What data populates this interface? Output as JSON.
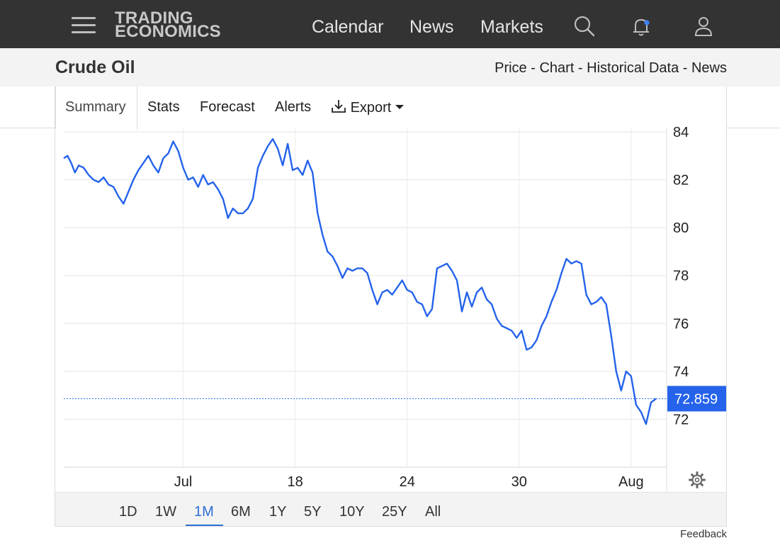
{
  "header": {
    "logo_line1": "TRADING",
    "logo_line2": "ECONOMICS",
    "nav": [
      "Calendar",
      "News",
      "Markets"
    ],
    "icons": [
      "menu-icon",
      "search-icon",
      "bell-icon",
      "user-icon"
    ],
    "notification_dot_color": "#3b82f6"
  },
  "subheader": {
    "title": "Crude Oil",
    "links": [
      "Price",
      "Chart",
      "Historical Data",
      "News"
    ],
    "separator": " - "
  },
  "tabs": {
    "summary": "Summary",
    "stats": "Stats",
    "forecast": "Forecast",
    "alerts": "Alerts",
    "export": "Export"
  },
  "ranges": {
    "items": [
      "1D",
      "1W",
      "1M",
      "6M",
      "1Y",
      "5Y",
      "10Y",
      "25Y",
      "All"
    ],
    "selected": "1M"
  },
  "feedback": "Feedback",
  "chart_data": {
    "type": "line",
    "series": [
      {
        "color": "#2563eb",
        "points": [
          [
            0,
            82.9
          ],
          [
            0.15,
            83.0
          ],
          [
            0.3,
            82.7
          ],
          [
            0.45,
            82.3
          ],
          [
            0.6,
            82.6
          ],
          [
            0.8,
            82.5
          ],
          [
            1.0,
            82.2
          ],
          [
            1.2,
            82.0
          ],
          [
            1.4,
            81.9
          ],
          [
            1.6,
            82.1
          ],
          [
            1.8,
            81.8
          ],
          [
            2.0,
            81.7
          ],
          [
            2.2,
            81.3
          ],
          [
            2.4,
            81.0
          ],
          [
            2.6,
            81.5
          ],
          [
            2.8,
            82.0
          ],
          [
            3.0,
            82.4
          ],
          [
            3.2,
            82.7
          ],
          [
            3.4,
            83.0
          ],
          [
            3.6,
            82.6
          ],
          [
            3.8,
            82.3
          ],
          [
            4.0,
            82.9
          ],
          [
            4.2,
            83.1
          ],
          [
            4.4,
            83.6
          ],
          [
            4.6,
            83.2
          ],
          [
            4.8,
            82.5
          ],
          [
            5.0,
            82.0
          ],
          [
            5.2,
            82.1
          ],
          [
            5.4,
            81.7
          ],
          [
            5.6,
            82.2
          ],
          [
            5.8,
            81.8
          ],
          [
            6.0,
            81.9
          ],
          [
            6.2,
            81.6
          ],
          [
            6.4,
            81.2
          ],
          [
            6.6,
            80.4
          ],
          [
            6.8,
            80.8
          ],
          [
            7.0,
            80.6
          ],
          [
            7.2,
            80.6
          ],
          [
            7.4,
            80.8
          ],
          [
            7.6,
            81.2
          ],
          [
            7.8,
            82.5
          ],
          [
            8.0,
            83.0
          ],
          [
            8.2,
            83.4
          ],
          [
            8.4,
            83.7
          ],
          [
            8.6,
            83.3
          ],
          [
            8.8,
            82.6
          ],
          [
            9.0,
            83.5
          ],
          [
            9.2,
            82.4
          ],
          [
            9.4,
            82.5
          ],
          [
            9.6,
            82.2
          ],
          [
            9.8,
            82.8
          ],
          [
            10.0,
            82.3
          ],
          [
            10.2,
            80.6
          ],
          [
            10.4,
            79.7
          ],
          [
            10.6,
            79.0
          ],
          [
            10.8,
            78.8
          ],
          [
            11.0,
            78.4
          ],
          [
            11.2,
            77.9
          ],
          [
            11.4,
            78.3
          ],
          [
            11.6,
            78.2
          ],
          [
            11.8,
            78.3
          ],
          [
            12.0,
            78.3
          ],
          [
            12.2,
            78.1
          ],
          [
            12.4,
            77.4
          ],
          [
            12.6,
            76.8
          ],
          [
            12.8,
            77.3
          ],
          [
            13.0,
            77.4
          ],
          [
            13.2,
            77.2
          ],
          [
            13.4,
            77.5
          ],
          [
            13.6,
            77.8
          ],
          [
            13.8,
            77.4
          ],
          [
            14.0,
            77.3
          ],
          [
            14.2,
            76.9
          ],
          [
            14.4,
            76.8
          ],
          [
            14.6,
            76.3
          ],
          [
            14.8,
            76.6
          ],
          [
            15.0,
            78.3
          ],
          [
            15.2,
            78.4
          ],
          [
            15.4,
            78.5
          ],
          [
            15.6,
            78.2
          ],
          [
            15.8,
            77.8
          ],
          [
            16.0,
            76.5
          ],
          [
            16.2,
            77.3
          ],
          [
            16.4,
            76.7
          ],
          [
            16.6,
            77.3
          ],
          [
            16.8,
            77.5
          ],
          [
            17.0,
            77.0
          ],
          [
            17.2,
            76.8
          ],
          [
            17.4,
            76.2
          ],
          [
            17.6,
            75.9
          ],
          [
            17.8,
            75.8
          ],
          [
            18.0,
            75.7
          ],
          [
            18.2,
            75.4
          ],
          [
            18.4,
            75.7
          ],
          [
            18.6,
            74.9
          ],
          [
            18.8,
            75.0
          ],
          [
            19.0,
            75.3
          ],
          [
            19.2,
            75.9
          ],
          [
            19.4,
            76.3
          ],
          [
            19.6,
            76.9
          ],
          [
            19.8,
            77.4
          ],
          [
            20.0,
            78.1
          ],
          [
            20.2,
            78.7
          ],
          [
            20.4,
            78.5
          ],
          [
            20.6,
            78.6
          ],
          [
            20.8,
            78.5
          ],
          [
            21.0,
            77.2
          ],
          [
            21.2,
            76.8
          ],
          [
            21.4,
            76.9
          ],
          [
            21.6,
            77.1
          ],
          [
            21.8,
            76.8
          ],
          [
            22.0,
            75.5
          ],
          [
            22.2,
            74.0
          ],
          [
            22.4,
            73.2
          ],
          [
            22.6,
            74.0
          ],
          [
            22.8,
            73.8
          ],
          [
            23.0,
            72.6
          ],
          [
            23.2,
            72.3
          ],
          [
            23.4,
            71.8
          ],
          [
            23.6,
            72.7
          ],
          [
            23.8,
            72.859
          ]
        ]
      }
    ],
    "xlabel": "",
    "ylabel": "",
    "x_ticks": [
      {
        "x": 4.8,
        "label": "Jul"
      },
      {
        "x": 9.3,
        "label": "18"
      },
      {
        "x": 13.8,
        "label": "24"
      },
      {
        "x": 18.3,
        "label": "30"
      },
      {
        "x": 22.8,
        "label": "Aug"
      }
    ],
    "y_ticks": [
      72,
      74,
      76,
      78,
      80,
      82,
      84
    ],
    "xlim": [
      0,
      24.2
    ],
    "ylim": [
      70.0,
      84.0
    ],
    "last_value": 72.859,
    "last_value_label": "72.859",
    "grid": true,
    "line_color": "#2563eb"
  }
}
